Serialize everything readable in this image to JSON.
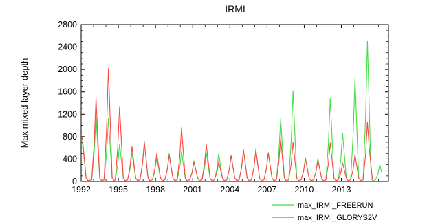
{
  "chart_data": {
    "type": "line",
    "title": "IRMI",
    "xlabel": "",
    "ylabel": "Max mixed layer depth",
    "xlim": [
      1992,
      2016.8
    ],
    "ylim": [
      0,
      2800
    ],
    "yticks": [
      0,
      400,
      800,
      1200,
      1600,
      2000,
      2400,
      2800
    ],
    "xticks": [
      1992,
      1995,
      1998,
      2001,
      2004,
      2007,
      2010,
      2013
    ],
    "grid": false,
    "legend_placement": "bottom-right, outside plot",
    "series": [
      {
        "name": "max_IRMI_FREERUN",
        "color": "#44dd44",
        "peaks": [
          [
            1992.1,
            700
          ],
          [
            1993.2,
            1150
          ],
          [
            1994.2,
            1130
          ],
          [
            1995.1,
            670
          ],
          [
            1996.1,
            510
          ],
          [
            1997.1,
            720
          ],
          [
            1998.1,
            420
          ],
          [
            1999.1,
            500
          ],
          [
            2000.1,
            540
          ],
          [
            2001.1,
            370
          ],
          [
            2002.1,
            510
          ],
          [
            2003.1,
            500
          ],
          [
            2004.1,
            470
          ],
          [
            2005.1,
            550
          ],
          [
            2006.1,
            580
          ],
          [
            2007.1,
            520
          ],
          [
            2008.1,
            1120
          ],
          [
            2009.1,
            1620
          ],
          [
            2010.1,
            420
          ],
          [
            2011.1,
            410
          ],
          [
            2012.1,
            1480
          ],
          [
            2013.1,
            860
          ],
          [
            2014.1,
            1840
          ],
          [
            2015.1,
            2510
          ],
          [
            2016.1,
            300
          ]
        ]
      },
      {
        "name": "max_IRMI_GLORYS2V",
        "color": "#ff4444",
        "peaks": [
          [
            1992.1,
            780
          ],
          [
            1993.2,
            1500
          ],
          [
            1994.2,
            2020
          ],
          [
            1995.1,
            1340
          ],
          [
            1996.1,
            620
          ],
          [
            1997.1,
            690
          ],
          [
            1998.1,
            500
          ],
          [
            1999.1,
            470
          ],
          [
            2000.1,
            960
          ],
          [
            2001.1,
            350
          ],
          [
            2002.1,
            670
          ],
          [
            2003.1,
            350
          ],
          [
            2004.1,
            460
          ],
          [
            2005.1,
            570
          ],
          [
            2006.1,
            560
          ],
          [
            2007.1,
            510
          ],
          [
            2008.1,
            760
          ],
          [
            2009.1,
            700
          ],
          [
            2010.1,
            400
          ],
          [
            2011.1,
            380
          ],
          [
            2012.1,
            690
          ],
          [
            2013.1,
            330
          ],
          [
            2014.1,
            480
          ],
          [
            2015.1,
            1060
          ]
        ],
        "end_x": 2015.5
      }
    ]
  }
}
